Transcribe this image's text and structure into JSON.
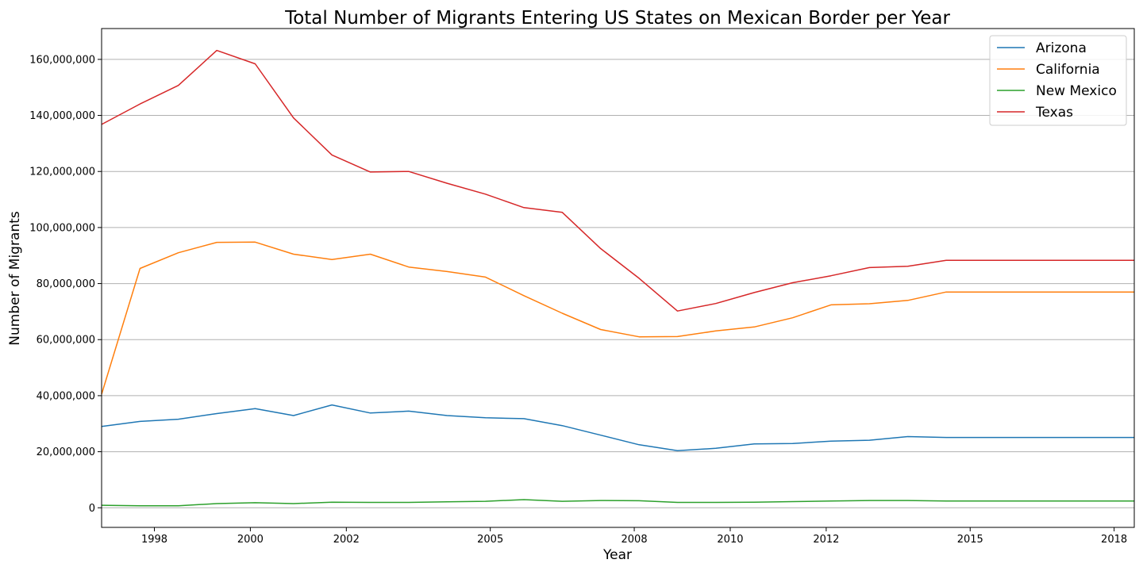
{
  "chart_data": {
    "type": "line",
    "title": "Total Number of Migrants Entering US States on Mexican Border per Year",
    "xlabel": "Year",
    "ylabel": "Number of Migrants",
    "xlim": [
      1996.9,
      2018.42
    ],
    "ylim": [
      -7000000,
      171000000
    ],
    "x_ticks": [
      1998,
      2000,
      2002,
      2005,
      2008,
      2010,
      2012,
      2015,
      2018
    ],
    "x_tick_labels": [
      "1998",
      "2000",
      "2002",
      "2005",
      "2008",
      "2010",
      "2012",
      "2015",
      "2018"
    ],
    "y_ticks": [
      0,
      20000000,
      40000000,
      60000000,
      80000000,
      100000000,
      120000000,
      140000000,
      160000000
    ],
    "y_tick_labels": [
      "0",
      "20,000,000",
      "40,000,000",
      "60,000,000",
      "80,000,000",
      "100,000,000",
      "120,000,000",
      "140,000,000",
      "160,000,000"
    ],
    "grid": "horizontal",
    "legend_position": "top-right",
    "x": [
      1996.9,
      1997.7,
      1998.5,
      1999.3,
      2000.1,
      2000.9,
      2001.7,
      2002.5,
      2003.3,
      2004.1,
      2004.9,
      2005.7,
      2006.5,
      2007.3,
      2008.1,
      2008.9,
      2009.7,
      2010.5,
      2011.3,
      2012.1,
      2012.9,
      2013.7,
      2014.5,
      2015.3,
      2016.1,
      2016.9,
      2017.7,
      2018.42
    ],
    "series": [
      {
        "name": "Arizona",
        "color": "#1f77b4",
        "values": [
          29000000,
          30800000,
          31600000,
          33600000,
          35400000,
          32900000,
          36700000,
          33800000,
          34500000,
          32900000,
          32100000,
          31800000,
          29300000,
          25900000,
          22500000,
          20400000,
          21200000,
          22800000,
          22900000,
          23800000,
          24100000,
          25400000,
          25100000,
          25100000,
          25100000,
          25100000,
          25100000,
          25100000
        ]
      },
      {
        "name": "California",
        "color": "#ff7f0e",
        "values": [
          40500000,
          85400000,
          91000000,
          94700000,
          94800000,
          90500000,
          88600000,
          90500000,
          85900000,
          84300000,
          82300000,
          75700000,
          69400000,
          63600000,
          61000000,
          61100000,
          63100000,
          64500000,
          67800000,
          72400000,
          72800000,
          74000000,
          77000000,
          77000000,
          77000000,
          77000000,
          77000000,
          77000000
        ]
      },
      {
        "name": "New Mexico",
        "color": "#2ca02c",
        "values": [
          900000,
          700000,
          700000,
          1500000,
          1800000,
          1500000,
          2000000,
          1900000,
          1900000,
          2100000,
          2300000,
          2900000,
          2300000,
          2600000,
          2500000,
          1900000,
          1900000,
          2000000,
          2200000,
          2400000,
          2600000,
          2600000,
          2400000,
          2400000,
          2400000,
          2400000,
          2400000,
          2400000
        ]
      },
      {
        "name": "Texas",
        "color": "#d62728",
        "values": [
          136800000,
          144100000,
          150700000,
          163200000,
          158400000,
          139100000,
          125900000,
          119800000,
          120000000,
          115800000,
          111900000,
          107100000,
          105400000,
          92500000,
          81900000,
          70200000,
          72900000,
          76800000,
          80300000,
          82800000,
          85700000,
          86200000,
          88300000,
          88300000,
          88300000,
          88300000,
          88300000,
          88300000
        ]
      }
    ]
  }
}
